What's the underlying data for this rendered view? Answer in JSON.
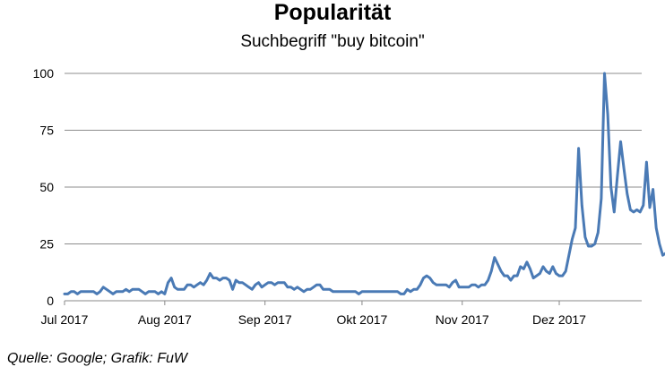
{
  "chart_data": {
    "type": "line",
    "title": "Popularität",
    "subtitle": "Suchbegriff \"buy bitcoin\"",
    "xlabel": "",
    "ylabel": "",
    "ylim": [
      0,
      100
    ],
    "yticks": [
      0,
      25,
      50,
      75,
      100
    ],
    "xlim": [
      "2017-07-01",
      "2017-12-31"
    ],
    "xticks": [
      {
        "date": "2017-07-01",
        "label": "Jul 2017"
      },
      {
        "date": "2017-08-01",
        "label": "Aug 2017"
      },
      {
        "date": "2017-09-01",
        "label": "Sep 2017"
      },
      {
        "date": "2017-10-01",
        "label": "Okt 2017"
      },
      {
        "date": "2017-11-01",
        "label": "Nov 2017"
      },
      {
        "date": "2017-12-01",
        "label": "Dez 2017"
      }
    ],
    "grid": "horizontal",
    "line_color": "#4a7ab5",
    "series": [
      {
        "points": [
          [
            "2017-07-01",
            3
          ],
          [
            "2017-07-02",
            3
          ],
          [
            "2017-07-03",
            4
          ],
          [
            "2017-07-04",
            4
          ],
          [
            "2017-07-05",
            3
          ],
          [
            "2017-07-06",
            4
          ],
          [
            "2017-07-07",
            4
          ],
          [
            "2017-07-08",
            4
          ],
          [
            "2017-07-09",
            4
          ],
          [
            "2017-07-10",
            4
          ],
          [
            "2017-07-11",
            3
          ],
          [
            "2017-07-12",
            4
          ],
          [
            "2017-07-13",
            6
          ],
          [
            "2017-07-14",
            5
          ],
          [
            "2017-07-15",
            4
          ],
          [
            "2017-07-16",
            3
          ],
          [
            "2017-07-17",
            4
          ],
          [
            "2017-07-18",
            4
          ],
          [
            "2017-07-19",
            4
          ],
          [
            "2017-07-20",
            5
          ],
          [
            "2017-07-21",
            4
          ],
          [
            "2017-07-22",
            5
          ],
          [
            "2017-07-23",
            5
          ],
          [
            "2017-07-24",
            5
          ],
          [
            "2017-07-25",
            4
          ],
          [
            "2017-07-26",
            3
          ],
          [
            "2017-07-27",
            4
          ],
          [
            "2017-07-28",
            4
          ],
          [
            "2017-07-29",
            4
          ],
          [
            "2017-07-30",
            3
          ],
          [
            "2017-07-31",
            4
          ],
          [
            "2017-08-01",
            3
          ],
          [
            "2017-08-02",
            8
          ],
          [
            "2017-08-03",
            10
          ],
          [
            "2017-08-04",
            6
          ],
          [
            "2017-08-05",
            5
          ],
          [
            "2017-08-06",
            5
          ],
          [
            "2017-08-07",
            5
          ],
          [
            "2017-08-08",
            7
          ],
          [
            "2017-08-09",
            7
          ],
          [
            "2017-08-10",
            6
          ],
          [
            "2017-08-11",
            7
          ],
          [
            "2017-08-12",
            8
          ],
          [
            "2017-08-13",
            7
          ],
          [
            "2017-08-14",
            9
          ],
          [
            "2017-08-15",
            12
          ],
          [
            "2017-08-16",
            10
          ],
          [
            "2017-08-17",
            10
          ],
          [
            "2017-08-18",
            9
          ],
          [
            "2017-08-19",
            10
          ],
          [
            "2017-08-20",
            10
          ],
          [
            "2017-08-21",
            9
          ],
          [
            "2017-08-22",
            5
          ],
          [
            "2017-08-23",
            9
          ],
          [
            "2017-08-24",
            8
          ],
          [
            "2017-08-25",
            8
          ],
          [
            "2017-08-26",
            7
          ],
          [
            "2017-08-27",
            6
          ],
          [
            "2017-08-28",
            5
          ],
          [
            "2017-08-29",
            7
          ],
          [
            "2017-08-30",
            8
          ],
          [
            "2017-08-31",
            6
          ],
          [
            "2017-09-01",
            7
          ],
          [
            "2017-09-02",
            8
          ],
          [
            "2017-09-03",
            8
          ],
          [
            "2017-09-04",
            7
          ],
          [
            "2017-09-05",
            8
          ],
          [
            "2017-09-06",
            8
          ],
          [
            "2017-09-07",
            8
          ],
          [
            "2017-09-08",
            6
          ],
          [
            "2017-09-09",
            6
          ],
          [
            "2017-09-10",
            5
          ],
          [
            "2017-09-11",
            6
          ],
          [
            "2017-09-12",
            5
          ],
          [
            "2017-09-13",
            4
          ],
          [
            "2017-09-14",
            5
          ],
          [
            "2017-09-15",
            5
          ],
          [
            "2017-09-16",
            6
          ],
          [
            "2017-09-17",
            7
          ],
          [
            "2017-09-18",
            7
          ],
          [
            "2017-09-19",
            5
          ],
          [
            "2017-09-20",
            5
          ],
          [
            "2017-09-21",
            5
          ],
          [
            "2017-09-22",
            4
          ],
          [
            "2017-09-23",
            4
          ],
          [
            "2017-09-24",
            4
          ],
          [
            "2017-09-25",
            4
          ],
          [
            "2017-09-26",
            4
          ],
          [
            "2017-09-27",
            4
          ],
          [
            "2017-09-28",
            4
          ],
          [
            "2017-09-29",
            4
          ],
          [
            "2017-09-30",
            3
          ],
          [
            "2017-10-01",
            4
          ],
          [
            "2017-10-02",
            4
          ],
          [
            "2017-10-03",
            4
          ],
          [
            "2017-10-04",
            4
          ],
          [
            "2017-10-05",
            4
          ],
          [
            "2017-10-06",
            4
          ],
          [
            "2017-10-07",
            4
          ],
          [
            "2017-10-08",
            4
          ],
          [
            "2017-10-09",
            4
          ],
          [
            "2017-10-10",
            4
          ],
          [
            "2017-10-11",
            4
          ],
          [
            "2017-10-12",
            4
          ],
          [
            "2017-10-13",
            3
          ],
          [
            "2017-10-14",
            3
          ],
          [
            "2017-10-15",
            5
          ],
          [
            "2017-10-16",
            4
          ],
          [
            "2017-10-17",
            5
          ],
          [
            "2017-10-18",
            5
          ],
          [
            "2017-10-19",
            7
          ],
          [
            "2017-10-20",
            10
          ],
          [
            "2017-10-21",
            11
          ],
          [
            "2017-10-22",
            10
          ],
          [
            "2017-10-23",
            8
          ],
          [
            "2017-10-24",
            7
          ],
          [
            "2017-10-25",
            7
          ],
          [
            "2017-10-26",
            7
          ],
          [
            "2017-10-27",
            7
          ],
          [
            "2017-10-28",
            6
          ],
          [
            "2017-10-29",
            8
          ],
          [
            "2017-10-30",
            9
          ],
          [
            "2017-10-31",
            6
          ],
          [
            "2017-11-01",
            6
          ],
          [
            "2017-11-02",
            6
          ],
          [
            "2017-11-03",
            6
          ],
          [
            "2017-11-04",
            7
          ],
          [
            "2017-11-05",
            7
          ],
          [
            "2017-11-06",
            6
          ],
          [
            "2017-11-07",
            7
          ],
          [
            "2017-11-08",
            7
          ],
          [
            "2017-11-09",
            9
          ],
          [
            "2017-11-10",
            13
          ],
          [
            "2017-11-11",
            19
          ],
          [
            "2017-11-12",
            16
          ],
          [
            "2017-11-13",
            13
          ],
          [
            "2017-11-14",
            11
          ],
          [
            "2017-11-15",
            11
          ],
          [
            "2017-11-16",
            9
          ],
          [
            "2017-11-17",
            11
          ],
          [
            "2017-11-18",
            11
          ],
          [
            "2017-11-19",
            15
          ],
          [
            "2017-11-20",
            14
          ],
          [
            "2017-11-21",
            17
          ],
          [
            "2017-11-22",
            14
          ],
          [
            "2017-11-23",
            10
          ],
          [
            "2017-11-24",
            11
          ],
          [
            "2017-11-25",
            12
          ],
          [
            "2017-11-26",
            15
          ],
          [
            "2017-11-27",
            13
          ],
          [
            "2017-11-28",
            12
          ],
          [
            "2017-11-29",
            15
          ],
          [
            "2017-11-30",
            12
          ],
          [
            "2017-12-01",
            11
          ],
          [
            "2017-12-02",
            11
          ],
          [
            "2017-12-03",
            13
          ],
          [
            "2017-12-04",
            20
          ],
          [
            "2017-12-05",
            27
          ],
          [
            "2017-12-06",
            32
          ],
          [
            "2017-12-07",
            67
          ],
          [
            "2017-12-08",
            42
          ],
          [
            "2017-12-09",
            28
          ],
          [
            "2017-12-10",
            24
          ],
          [
            "2017-12-11",
            24
          ],
          [
            "2017-12-12",
            25
          ],
          [
            "2017-12-13",
            30
          ],
          [
            "2017-12-14",
            45
          ],
          [
            "2017-12-15",
            100
          ],
          [
            "2017-12-16",
            82
          ],
          [
            "2017-12-17",
            50
          ],
          [
            "2017-12-18",
            39
          ],
          [
            "2017-12-19",
            55
          ],
          [
            "2017-12-20",
            70
          ],
          [
            "2017-12-21",
            58
          ],
          [
            "2017-12-22",
            47
          ],
          [
            "2017-12-23",
            40
          ],
          [
            "2017-12-24",
            39
          ],
          [
            "2017-12-25",
            40
          ],
          [
            "2017-12-26",
            39
          ],
          [
            "2017-12-27",
            42
          ],
          [
            "2017-12-28",
            61
          ],
          [
            "2017-12-29",
            41
          ],
          [
            "2017-12-30",
            49
          ],
          [
            "2017-12-31",
            32
          ],
          [
            "2018-01-01",
            25
          ],
          [
            "2018-01-02",
            20
          ],
          [
            "2018-01-03",
            21
          ]
        ]
      }
    ],
    "source": "Quelle: Google; Grafik: FuW"
  }
}
